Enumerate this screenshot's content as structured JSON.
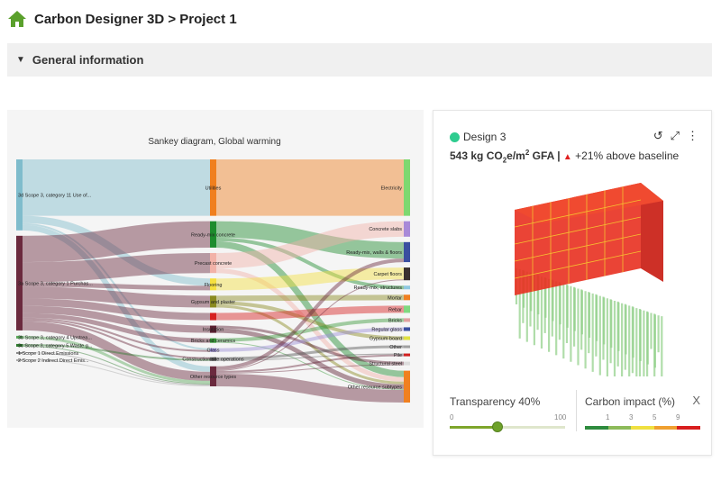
{
  "header": {
    "title": "Carbon Designer 3D > Project 1"
  },
  "section": {
    "title": "General information"
  },
  "sankey": {
    "title": "Sankey diagram, Global warming",
    "columns": [
      [
        {
          "id": "L1",
          "label": "3d Scope 3, category 11 Use of...",
          "color": "#7fbccc"
        },
        {
          "id": "L2",
          "label": "3a Scope 3, category 1 Purchas...",
          "color": "#6b2a3e"
        },
        {
          "id": "L3",
          "label": "3b Scope 3, category 4 Upstrea...",
          "color": "#5aa85a"
        },
        {
          "id": "L4",
          "label": "3c Scope 3, category 5 Waste g...",
          "color": "#2e7a2e"
        },
        {
          "id": "L5",
          "label": "1 Scope 1 Direct Emissions",
          "color": "#888888"
        },
        {
          "id": "L6",
          "label": "2 Scope 2 Indirect Direct Emis...",
          "color": "#aaaaaa"
        }
      ],
      [
        {
          "id": "M1",
          "label": "Utilities",
          "color": "#f07f1e"
        },
        {
          "id": "M2",
          "label": "Ready-mix concrete",
          "color": "#1e8c2e"
        },
        {
          "id": "M3",
          "label": "Precast concrete",
          "color": "#f2b2a8"
        },
        {
          "id": "M4",
          "label": "Flooring",
          "color": "#f5e040"
        },
        {
          "id": "M5",
          "label": "Gypsum and plaster",
          "color": "#8a8a20"
        },
        {
          "id": "M6",
          "label": "",
          "color": "#d62020"
        },
        {
          "id": "M7",
          "label": "Insulation",
          "color": "#5a2030"
        },
        {
          "id": "M8",
          "label": "Bricks and ceramics",
          "color": "#3a9a3a"
        },
        {
          "id": "M9",
          "label": "Glass",
          "color": "#9c8ed8"
        },
        {
          "id": "M10",
          "label": "Construction site operations",
          "color": "#555555"
        },
        {
          "id": "M11",
          "label": "Other resource types",
          "color": "#6b2a3e"
        }
      ],
      [
        {
          "id": "R1",
          "label": "Electricity",
          "color": "#7ed870"
        },
        {
          "id": "R2",
          "label": "Concrete slabs",
          "color": "#a98ad8"
        },
        {
          "id": "R3",
          "label": "Ready-mix, walls & floors",
          "color": "#3a4fa0"
        },
        {
          "id": "R4",
          "label": "Carpet floors",
          "color": "#3a3030"
        },
        {
          "id": "R5",
          "label": "Ready-mix, structures",
          "color": "#8fc8e0"
        },
        {
          "id": "R6",
          "label": "Mortar",
          "color": "#f08020"
        },
        {
          "id": "R7",
          "label": "Rebar",
          "color": "#80d880"
        },
        {
          "id": "R8",
          "label": "Bricks",
          "color": "#e0a0a0"
        },
        {
          "id": "R9",
          "label": "Regular glass",
          "color": "#3a4fa0"
        },
        {
          "id": "R10",
          "label": "Gypsum board",
          "color": "#e0e040"
        },
        {
          "id": "R11",
          "label": "Other",
          "color": "#a0a0a0"
        },
        {
          "id": "R12",
          "label": "Pile",
          "color": "#d02020"
        },
        {
          "id": "R13",
          "label": "Structural steel",
          "color": "#dddddd"
        },
        {
          "id": "R14",
          "label": "Other resource subtypes",
          "color": "#f08020"
        }
      ]
    ],
    "flows": [
      [
        "L1",
        "M1",
        62
      ],
      [
        "L1",
        "M4",
        8
      ],
      [
        "L1",
        "M9",
        2
      ],
      [
        "L1",
        "M11",
        6
      ],
      [
        "L2",
        "M2",
        29
      ],
      [
        "L2",
        "M3",
        22
      ],
      [
        "L2",
        "M4",
        5
      ],
      [
        "L2",
        "M5",
        13
      ],
      [
        "L2",
        "M6",
        8
      ],
      [
        "L2",
        "M7",
        8
      ],
      [
        "L2",
        "M8",
        5
      ],
      [
        "L2",
        "M9",
        2
      ],
      [
        "L2",
        "M10",
        2
      ],
      [
        "L2",
        "M11",
        10
      ],
      [
        "L3",
        "M11",
        3
      ],
      [
        "L4",
        "M10",
        2
      ],
      [
        "L4",
        "M11",
        1
      ],
      [
        "L5",
        "M11",
        1
      ],
      [
        "L6",
        "M11",
        1
      ],
      [
        "M1",
        "R1",
        62
      ],
      [
        "M2",
        "R3",
        18
      ],
      [
        "M2",
        "R5",
        4
      ],
      [
        "M2",
        "R14",
        7
      ],
      [
        "M3",
        "R2",
        17
      ],
      [
        "M3",
        "R14",
        5
      ],
      [
        "M4",
        "R4",
        13
      ],
      [
        "M5",
        "R6",
        6
      ],
      [
        "M5",
        "R10",
        4
      ],
      [
        "M5",
        "R14",
        3
      ],
      [
        "M6",
        "R7",
        8
      ],
      [
        "M7",
        "R13",
        3
      ],
      [
        "M7",
        "R14",
        5
      ],
      [
        "M8",
        "R8",
        4
      ],
      [
        "M8",
        "R14",
        1
      ],
      [
        "M9",
        "R9",
        4
      ],
      [
        "M10",
        "R11",
        3
      ],
      [
        "M10",
        "R12",
        1
      ],
      [
        "M11",
        "R3",
        4
      ],
      [
        "M11",
        "R4",
        1
      ],
      [
        "M11",
        "R12",
        2
      ],
      [
        "M11",
        "R13",
        1
      ],
      [
        "M11",
        "R14",
        14
      ]
    ]
  },
  "card": {
    "design": "Design 3",
    "metric_value": "543 kg CO",
    "metric_sub": "2",
    "metric_unit": "e/m",
    "metric_sup": "2",
    "metric_gfa": " GFA |",
    "delta": "+21% above baseline",
    "icons": {
      "reset": "↺",
      "expand": "⤢",
      "more": "⋮"
    },
    "transparency": {
      "label": "Transparency 40%",
      "min": "0",
      "max": "100",
      "value": 40
    },
    "carbon": {
      "label": "Carbon impact (%)",
      "ticks": [
        "1",
        "3",
        "5",
        "9"
      ],
      "colors": [
        "#2e8b3e",
        "#8dbb5a",
        "#f0e040",
        "#f0a030",
        "#d81e1e"
      ],
      "close": "X"
    }
  }
}
